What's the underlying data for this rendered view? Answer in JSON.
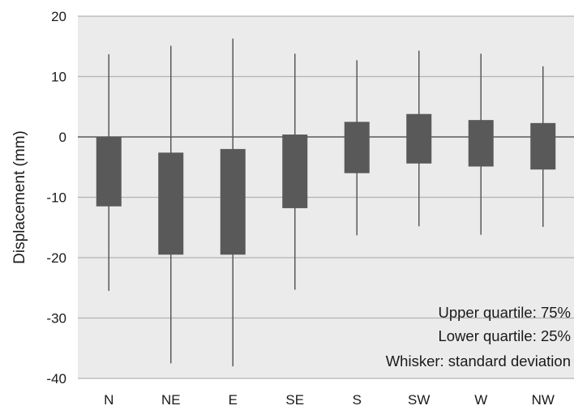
{
  "chart_data": {
    "type": "box",
    "ylabel": "Displacement  (mm)",
    "ylim": [
      -40,
      20
    ],
    "yticks": [
      20,
      10,
      0,
      -10,
      -20,
      -30,
      -40
    ],
    "categories": [
      "N",
      "NE",
      "E",
      "SE",
      "S",
      "SW",
      "W",
      "NW"
    ],
    "boxes": [
      {
        "category": "N",
        "q1": -11.5,
        "q3": 0.0,
        "whisker_low": -25.5,
        "whisker_high": 13.7
      },
      {
        "category": "NE",
        "q1": -19.5,
        "q3": -2.6,
        "whisker_low": -37.5,
        "whisker_high": 15.1
      },
      {
        "category": "E",
        "q1": -19.5,
        "q3": -2.0,
        "whisker_low": -38.0,
        "whisker_high": 16.3
      },
      {
        "category": "SE",
        "q1": -11.8,
        "q3": 0.4,
        "whisker_low": -25.3,
        "whisker_high": 13.8
      },
      {
        "category": "S",
        "q1": -6.0,
        "q3": 2.5,
        "whisker_low": -16.3,
        "whisker_high": 12.7
      },
      {
        "category": "SW",
        "q1": -4.4,
        "q3": 3.8,
        "whisker_low": -14.8,
        "whisker_high": 14.3
      },
      {
        "category": "W",
        "q1": -4.9,
        "q3": 2.8,
        "whisker_low": -16.2,
        "whisker_high": 13.8
      },
      {
        "category": "NW",
        "q1": -5.4,
        "q3": 2.3,
        "whisker_low": -14.9,
        "whisker_high": 11.7
      }
    ],
    "annotations": [
      "Upper quartile: 75%",
      "Lower quartile: 25%",
      "Whisker: standard deviation"
    ],
    "grid": true,
    "colors": {
      "plot_background": "#ebebeb",
      "gridline": "#b3b3b3",
      "zero_line": "#7f7f7f",
      "box": "#595959",
      "whisker": "#595959"
    }
  }
}
